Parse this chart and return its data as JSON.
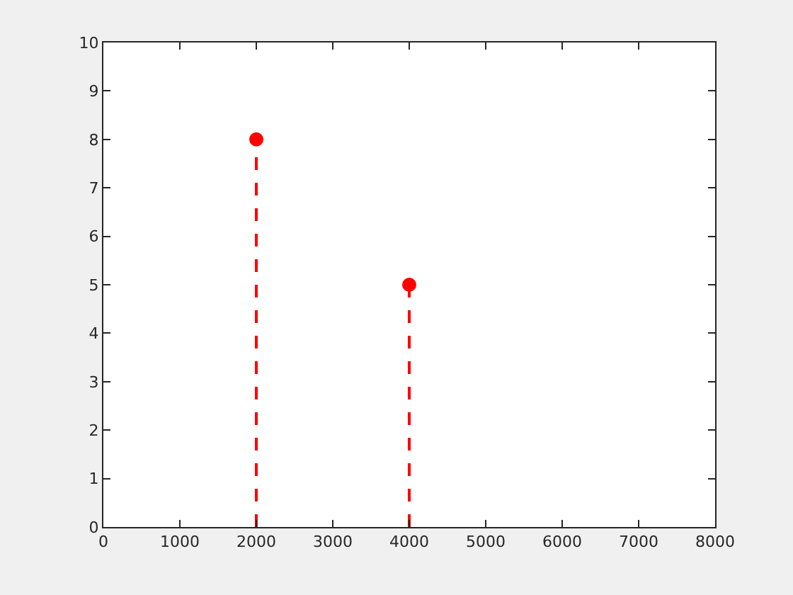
{
  "chart_data": {
    "type": "lollipop",
    "x": [
      2000,
      4000
    ],
    "series": [
      {
        "color": "#ff0000",
        "values": [
          8,
          5
        ]
      }
    ],
    "xlim": [
      0,
      8000
    ],
    "xticks": [
      0,
      1000,
      2000,
      3000,
      4000,
      5000,
      6000,
      7000,
      8000
    ],
    "ylim": [
      0,
      10
    ],
    "yticks": [
      0,
      1,
      2,
      3,
      4,
      5,
      6,
      7,
      8,
      9,
      10
    ],
    "marker": "circle",
    "line_style": "dashed"
  }
}
